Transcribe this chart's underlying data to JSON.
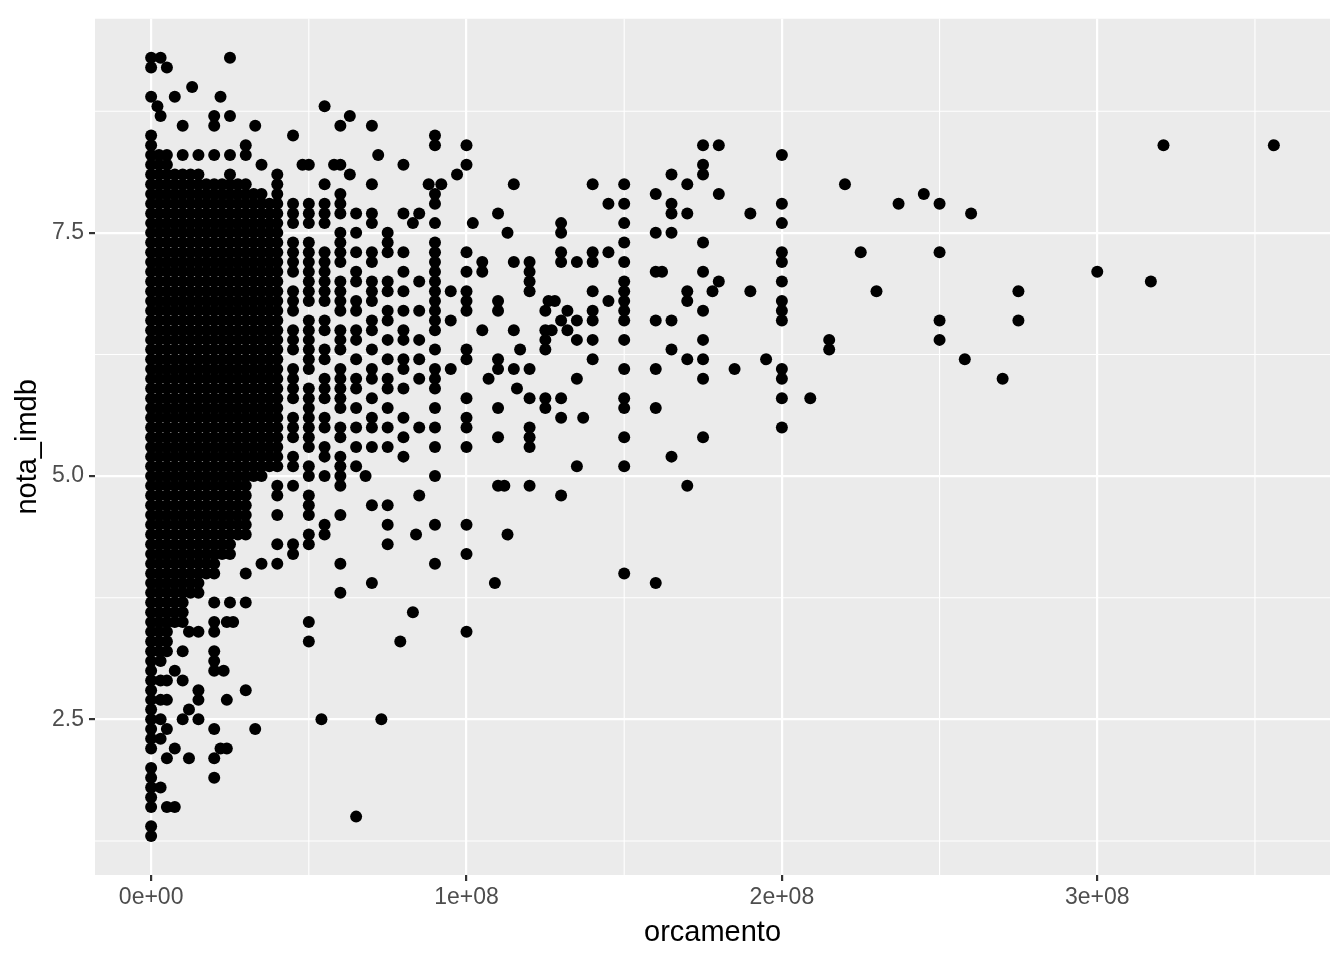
{
  "chart_data": {
    "type": "scatter",
    "xlabel": "orcamento",
    "ylabel": "nota_imdb",
    "color": "#000000",
    "marker": "circle",
    "grid": true,
    "xlim": [
      -17800000.0,
      373800000.0
    ],
    "ylim": [
      0.9,
      9.7
    ],
    "xticks": [
      {
        "value": 0,
        "label": "0e+00"
      },
      {
        "value": 100000000.0,
        "label": "1e+08"
      },
      {
        "value": 200000000.0,
        "label": "2e+08"
      },
      {
        "value": 300000000.0,
        "label": "3e+08"
      }
    ],
    "yticks": [
      2.5,
      {
        "value": 5,
        "label": "5.0"
      },
      7.5
    ],
    "x": [
      0,
      0,
      0,
      0,
      0,
      0,
      0,
      0,
      0,
      0,
      0,
      0,
      0,
      0,
      0,
      0,
      0,
      0,
      0,
      0,
      0,
      0,
      0,
      0,
      0,
      0,
      0,
      0,
      0,
      0,
      0,
      0,
      0,
      0,
      0,
      0,
      0,
      0,
      0,
      0,
      0,
      0,
      0,
      0,
      0,
      0,
      0,
      0,
      0,
      0,
      0,
      0,
      0,
      0,
      0,
      0,
      0,
      0,
      0,
      0,
      0,
      0,
      0,
      0,
      0,
      0,
      0,
      0,
      0,
      0,
      0,
      0,
      0,
      0,
      2000000.0,
      3000000.0,
      3000000.0,
      3000000.0,
      3000000.0,
      3000000.0,
      3000000.0,
      3000000.0,
      3000000.0,
      5000000.0,
      5000000.0,
      5000000.0,
      5000000.0,
      5000000.0,
      5000000.0,
      5000000.0,
      5000000.0,
      5000000.0,
      5000000.0,
      5000000.0,
      5000000.0,
      5000000.0,
      5000000.0,
      5000000.0,
      5000000.0,
      5000000.0,
      5000000.0,
      5000000.0,
      5000000.0,
      5000000.0,
      5000000.0,
      5000000.0,
      5000000.0,
      5000000.0,
      5000000.0,
      5000000.0,
      5000000.0,
      5000000.0,
      5000000.0,
      5000000.0,
      5000000.0,
      5000000.0,
      5000000.0,
      5000000.0,
      5000000.0,
      5000000.0,
      5000000.0,
      5000000.0,
      5000000.0,
      5000000.0,
      5000000.0,
      5000000.0,
      5000000.0,
      5000000.0,
      5000000.0,
      5000000.0,
      5000000.0,
      5000000.0,
      5000000.0,
      5000000.0,
      5000000.0,
      5000000.0,
      5000000.0,
      5000000.0,
      5000000.0,
      5000000.0,
      5000000.0,
      7500000.0,
      7500000.0,
      7500000.0,
      7500000.0,
      10000000.0,
      10000000.0,
      10000000.0,
      10000000.0,
      10000000.0,
      10000000.0,
      10000000.0,
      10000000.0,
      10000000.0,
      10000000.0,
      10000000.0,
      10000000.0,
      10000000.0,
      10000000.0,
      10000000.0,
      10000000.0,
      10000000.0,
      10000000.0,
      10000000.0,
      10000000.0,
      10000000.0,
      10000000.0,
      10000000.0,
      10000000.0,
      10000000.0,
      10000000.0,
      10000000.0,
      10000000.0,
      10000000.0,
      10000000.0,
      10000000.0,
      10000000.0,
      10000000.0,
      10000000.0,
      10000000.0,
      10000000.0,
      10000000.0,
      10000000.0,
      10000000.0,
      10000000.0,
      10000000.0,
      10000000.0,
      10000000.0,
      10000000.0,
      10000000.0,
      10000000.0,
      10000000.0,
      10000000.0,
      10000000.0,
      10000000.0,
      10000000.0,
      10000000.0,
      12000000.0,
      12000000.0,
      12000000.0,
      13000000.0,
      15000000.0,
      15000000.0,
      15000000.0,
      15000000.0,
      15000000.0,
      15000000.0,
      15000000.0,
      15000000.0,
      15000000.0,
      15000000.0,
      15000000.0,
      15000000.0,
      15000000.0,
      15000000.0,
      15000000.0,
      15000000.0,
      15000000.0,
      15000000.0,
      15000000.0,
      15000000.0,
      15000000.0,
      15000000.0,
      15000000.0,
      15000000.0,
      15000000.0,
      15000000.0,
      15000000.0,
      15000000.0,
      15000000.0,
      15000000.0,
      15000000.0,
      15000000.0,
      15000000.0,
      15000000.0,
      15000000.0,
      15000000.0,
      15000000.0,
      15000000.0,
      15000000.0,
      15000000.0,
      15000000.0,
      15000000.0,
      15000000.0,
      15000000.0,
      15000000.0,
      15000000.0,
      15000000.0,
      15000000.0,
      15000000.0,
      20000000.0,
      20000000.0,
      20000000.0,
      20000000.0,
      20000000.0,
      20000000.0,
      20000000.0,
      20000000.0,
      20000000.0,
      20000000.0,
      20000000.0,
      20000000.0,
      20000000.0,
      20000000.0,
      20000000.0,
      20000000.0,
      20000000.0,
      20000000.0,
      20000000.0,
      20000000.0,
      20000000.0,
      20000000.0,
      20000000.0,
      20000000.0,
      20000000.0,
      20000000.0,
      20000000.0,
      20000000.0,
      20000000.0,
      20000000.0,
      20000000.0,
      20000000.0,
      20000000.0,
      20000000.0,
      20000000.0,
      20000000.0,
      20000000.0,
      20000000.0,
      20000000.0,
      20000000.0,
      20000000.0,
      20000000.0,
      20000000.0,
      20000000.0,
      20000000.0,
      20000000.0,
      20000000.0,
      20000000.0,
      20000000.0,
      20000000.0,
      20000000.0,
      20000000.0,
      20000000.0,
      22000000.0,
      22000000.0,
      23000000.0,
      24000000.0,
      24000000.0,
      24000000.0,
      25000000.0,
      25000000.0,
      25000000.0,
      25000000.0,
      25000000.0,
      25000000.0,
      25000000.0,
      25000000.0,
      25000000.0,
      25000000.0,
      25000000.0,
      25000000.0,
      25000000.0,
      25000000.0,
      25000000.0,
      25000000.0,
      25000000.0,
      25000000.0,
      25000000.0,
      25000000.0,
      25000000.0,
      25000000.0,
      25000000.0,
      25000000.0,
      25000000.0,
      25000000.0,
      25000000.0,
      25000000.0,
      25000000.0,
      25000000.0,
      25000000.0,
      25000000.0,
      25000000.0,
      25000000.0,
      25000000.0,
      25000000.0,
      25000000.0,
      25000000.0,
      25000000.0,
      25000000.0,
      25000000.0,
      25000000.0,
      25000000.0,
      25000000.0,
      26000000.0,
      30000000.0,
      30000000.0,
      30000000.0,
      30000000.0,
      30000000.0,
      30000000.0,
      30000000.0,
      30000000.0,
      30000000.0,
      30000000.0,
      30000000.0,
      30000000.0,
      30000000.0,
      30000000.0,
      30000000.0,
      30000000.0,
      30000000.0,
      30000000.0,
      30000000.0,
      30000000.0,
      30000000.0,
      30000000.0,
      30000000.0,
      30000000.0,
      30000000.0,
      30000000.0,
      30000000.0,
      30000000.0,
      30000000.0,
      30000000.0,
      30000000.0,
      30000000.0,
      30000000.0,
      30000000.0,
      30000000.0,
      30000000.0,
      30000000.0,
      30000000.0,
      30000000.0,
      30000000.0,
      30000000.0,
      30000000.0,
      33000000.0,
      33000000.0,
      35000000.0,
      35000000.0,
      35000000.0,
      35000000.0,
      35000000.0,
      35000000.0,
      35000000.0,
      35000000.0,
      35000000.0,
      35000000.0,
      35000000.0,
      35000000.0,
      35000000.0,
      35000000.0,
      35000000.0,
      35000000.0,
      35000000.0,
      35000000.0,
      35000000.0,
      35000000.0,
      35000000.0,
      35000000.0,
      35000000.0,
      35000000.0,
      35000000.0,
      35000000.0,
      35000000.0,
      35000000.0,
      35000000.0,
      35000000.0,
      35000000.0,
      35000000.0,
      40000000.0,
      40000000.0,
      40000000.0,
      40000000.0,
      40000000.0,
      40000000.0,
      40000000.0,
      40000000.0,
      40000000.0,
      40000000.0,
      40000000.0,
      40000000.0,
      40000000.0,
      40000000.0,
      40000000.0,
      40000000.0,
      40000000.0,
      40000000.0,
      40000000.0,
      40000000.0,
      40000000.0,
      40000000.0,
      40000000.0,
      40000000.0,
      40000000.0,
      40000000.0,
      40000000.0,
      40000000.0,
      40000000.0,
      40000000.0,
      40000000.0,
      40000000.0,
      40000000.0,
      40000000.0,
      40000000.0,
      40000000.0,
      45000000.0,
      45000000.0,
      45000000.0,
      45000000.0,
      45000000.0,
      45000000.0,
      45000000.0,
      45000000.0,
      45000000.0,
      45000000.0,
      45000000.0,
      45000000.0,
      45000000.0,
      45000000.0,
      45000000.0,
      45000000.0,
      45000000.0,
      45000000.0,
      45000000.0,
      45000000.0,
      45000000.0,
      45000000.0,
      45000000.0,
      45000000.0,
      45000000.0,
      45000000.0,
      48000000.0,
      50000000.0,
      50000000.0,
      50000000.0,
      50000000.0,
      50000000.0,
      50000000.0,
      50000000.0,
      50000000.0,
      50000000.0,
      50000000.0,
      50000000.0,
      50000000.0,
      50000000.0,
      50000000.0,
      50000000.0,
      50000000.0,
      50000000.0,
      50000000.0,
      50000000.0,
      50000000.0,
      50000000.0,
      50000000.0,
      50000000.0,
      50000000.0,
      50000000.0,
      50000000.0,
      50000000.0,
      50000000.0,
      50000000.0,
      50000000.0,
      50000000.0,
      50000000.0,
      50000000.0,
      54000000.0,
      55000000.0,
      55000000.0,
      55000000.0,
      55000000.0,
      55000000.0,
      55000000.0,
      55000000.0,
      55000000.0,
      55000000.0,
      55000000.0,
      55000000.0,
      55000000.0,
      55000000.0,
      55000000.0,
      55000000.0,
      55000000.0,
      55000000.0,
      55000000.0,
      55000000.0,
      55000000.0,
      55000000.0,
      55000000.0,
      55000000.0,
      55000000.0,
      55000000.0,
      58000000.0,
      60000000.0,
      60000000.0,
      60000000.0,
      60000000.0,
      60000000.0,
      60000000.0,
      60000000.0,
      60000000.0,
      60000000.0,
      60000000.0,
      60000000.0,
      60000000.0,
      60000000.0,
      60000000.0,
      60000000.0,
      60000000.0,
      60000000.0,
      60000000.0,
      60000000.0,
      60000000.0,
      60000000.0,
      60000000.0,
      60000000.0,
      60000000.0,
      60000000.0,
      60000000.0,
      60000000.0,
      60000000.0,
      60000000.0,
      60000000.0,
      63000000.0,
      63000000.0,
      65000000.0,
      65000000.0,
      65000000.0,
      65000000.0,
      65000000.0,
      65000000.0,
      65000000.0,
      65000000.0,
      65000000.0,
      65000000.0,
      65000000.0,
      65000000.0,
      65000000.0,
      65000000.0,
      65000000.0,
      65000000.0,
      65000000.0,
      68000000.0,
      70000000.0,
      70000000.0,
      70000000.0,
      70000000.0,
      70000000.0,
      70000000.0,
      70000000.0,
      70000000.0,
      70000000.0,
      70000000.0,
      70000000.0,
      70000000.0,
      70000000.0,
      70000000.0,
      70000000.0,
      70000000.0,
      70000000.0,
      70000000.0,
      70000000.0,
      70000000.0,
      72000000.0,
      73000000.0,
      75000000.0,
      75000000.0,
      75000000.0,
      75000000.0,
      75000000.0,
      75000000.0,
      75000000.0,
      75000000.0,
      75000000.0,
      75000000.0,
      75000000.0,
      75000000.0,
      75000000.0,
      75000000.0,
      75000000.0,
      75000000.0,
      75000000.0,
      79000000.0,
      80000000.0,
      80000000.0,
      80000000.0,
      80000000.0,
      80000000.0,
      80000000.0,
      80000000.0,
      80000000.0,
      80000000.0,
      80000000.0,
      80000000.0,
      80000000.0,
      80000000.0,
      80000000.0,
      83000000.0,
      83000000.0,
      84000000.0,
      85000000.0,
      85000000.0,
      85000000.0,
      85000000.0,
      85000000.0,
      85000000.0,
      85000000.0,
      85000000.0,
      88000000.0,
      90000000.0,
      90000000.0,
      90000000.0,
      90000000.0,
      90000000.0,
      90000000.0,
      90000000.0,
      90000000.0,
      90000000.0,
      90000000.0,
      90000000.0,
      90000000.0,
      90000000.0,
      90000000.0,
      90000000.0,
      90000000.0,
      90000000.0,
      90000000.0,
      90000000.0,
      90000000.0,
      90000000.0,
      90000000.0,
      90000000.0,
      90000000.0,
      90000000.0,
      92000000.0,
      95000000.0,
      95000000.0,
      95000000.0,
      97000000.0,
      100000000.0,
      100000000.0,
      100000000.0,
      100000000.0,
      100000000.0,
      100000000.0,
      100000000.0,
      100000000.0,
      100000000.0,
      100000000.0,
      100000000.0,
      100000000.0,
      100000000.0,
      100000000.0,
      100000000.0,
      100000000.0,
      102000000.0,
      105000000.0,
      105000000.0,
      105000000.0,
      107000000.0,
      109000000.0,
      110000000.0,
      110000000.0,
      110000000.0,
      110000000.0,
      110000000.0,
      110000000.0,
      110000000.0,
      110000000.0,
      112000000.0,
      113000000.0,
      113000000.0,
      115000000.0,
      115000000.0,
      115000000.0,
      115000000.0,
      116000000.0,
      117000000.0,
      120000000.0,
      120000000.0,
      120000000.0,
      120000000.0,
      120000000.0,
      120000000.0,
      120000000.0,
      120000000.0,
      120000000.0,
      120000000.0,
      125000000.0,
      125000000.0,
      125000000.0,
      125000000.0,
      125000000.0,
      125000000.0,
      127000000.0,
      126000000.0,
      128000000.0,
      130000000.0,
      130000000.0,
      130000000.0,
      130000000.0,
      130000000.0,
      130000000.0,
      130000000.0,
      130000000.0,
      132000000.0,
      132000000.0,
      135000000.0,
      135000000.0,
      135000000.0,
      135000000.0,
      135000000.0,
      137000000.0,
      140000000.0,
      140000000.0,
      140000000.0,
      140000000.0,
      140000000.0,
      140000000.0,
      140000000.0,
      140000000.0,
      145000000.0,
      145000000.0,
      145000000.0,
      150000000.0,
      150000000.0,
      150000000.0,
      150000000.0,
      150000000.0,
      150000000.0,
      150000000.0,
      150000000.0,
      150000000.0,
      150000000.0,
      150000000.0,
      150000000.0,
      150000000.0,
      150000000.0,
      150000000.0,
      150000000.0,
      150000000.0,
      160000000.0,
      160000000.0,
      160000000.0,
      160000000.0,
      160000000.0,
      160000000.0,
      160000000.0,
      162000000.0,
      165000000.0,
      165000000.0,
      165000000.0,
      165000000.0,
      165000000.0,
      165000000.0,
      165000000.0,
      170000000.0,
      170000000.0,
      170000000.0,
      170000000.0,
      170000000.0,
      170000000.0,
      175000000.0,
      175000000.0,
      175000000.0,
      175000000.0,
      175000000.0,
      175000000.0,
      175000000.0,
      175000000.0,
      175000000.0,
      175000000.0,
      178000000.0,
      180000000.0,
      180000000.0,
      180000000.0,
      185000000.0,
      190000000.0,
      190000000.0,
      195000000.0,
      200000000.0,
      200000000.0,
      200000000.0,
      200000000.0,
      200000000.0,
      200000000.0,
      200000000.0,
      200000000.0,
      200000000.0,
      200000000.0,
      200000000.0,
      200000000.0,
      200000000.0,
      209000000.0,
      215000000.0,
      215000000.0,
      220000000.0,
      225000000.0,
      230000000.0,
      237000000.0,
      245000000.0,
      250000000.0,
      250000000.0,
      250000000.0,
      250000000.0,
      258000000.0,
      260000000.0,
      270000000.0,
      275000000.0,
      275000000.0,
      300000000.0,
      317000000.0,
      321000000.0,
      356000000.0,
      2500000.0,
      2500000.0,
      2500000.0,
      2500000.0,
      2500000.0,
      2500000.0,
      2500000.0,
      2500000.0,
      2500000.0,
      2500000.0,
      2500000.0,
      2500000.0,
      2500000.0,
      2500000.0,
      2500000.0,
      2500000.0,
      2500000.0,
      2500000.0,
      2500000.0,
      2500000.0,
      2500000.0,
      2500000.0,
      2500000.0,
      2500000.0,
      2500000.0,
      2500000.0,
      2500000.0,
      2500000.0,
      2500000.0,
      2500000.0,
      2500000.0,
      2500000.0,
      2500000.0,
      2500000.0,
      2500000.0,
      2500000.0,
      2500000.0,
      2500000.0,
      2500000.0,
      2500000.0,
      2500000.0,
      2500000.0,
      2500000.0,
      2500000.0,
      2500000.0,
      2500000.0,
      2500000.0,
      2500000.0,
      2500000.0,
      2500000.0,
      2500000.0,
      2500000.0,
      7500000.0,
      7500000.0,
      7500000.0,
      7500000.0,
      7500000.0,
      7500000.0,
      7500000.0,
      7500000.0,
      7500000.0,
      7500000.0,
      7500000.0,
      7500000.0,
      7500000.0,
      7500000.0,
      7500000.0,
      7500000.0,
      7500000.0,
      7500000.0,
      7500000.0,
      7500000.0,
      7500000.0,
      7500000.0,
      7500000.0,
      7500000.0,
      7500000.0,
      7500000.0,
      7500000.0,
      7500000.0,
      7500000.0,
      7500000.0,
      7500000.0,
      7500000.0,
      7500000.0,
      7500000.0,
      7500000.0,
      7500000.0,
      7500000.0,
      7500000.0,
      7500000.0,
      7500000.0,
      7500000.0,
      7500000.0,
      7500000.0,
      7500000.0,
      7500000.0,
      7500000.0,
      7500000.0,
      12500000.0,
      12500000.0,
      12500000.0,
      12500000.0,
      12500000.0,
      12500000.0,
      12500000.0,
      12500000.0,
      12500000.0,
      12500000.0,
      12500000.0,
      12500000.0,
      12500000.0,
      12500000.0,
      12500000.0,
      12500000.0,
      12500000.0,
      12500000.0,
      12500000.0,
      12500000.0,
      12500000.0,
      12500000.0,
      12500000.0,
      12500000.0,
      12500000.0,
      12500000.0,
      12500000.0,
      12500000.0,
      12500000.0,
      12500000.0,
      12500000.0,
      12500000.0,
      12500000.0,
      12500000.0,
      12500000.0,
      12500000.0,
      12500000.0,
      12500000.0,
      12500000.0,
      12500000.0,
      12500000.0,
      12500000.0,
      12500000.0,
      12500000.0,
      17500000.0,
      17500000.0,
      17500000.0,
      17500000.0,
      17500000.0,
      17500000.0,
      17500000.0,
      17500000.0,
      17500000.0,
      17500000.0,
      17500000.0,
      17500000.0,
      17500000.0,
      17500000.0,
      17500000.0,
      17500000.0,
      17500000.0,
      17500000.0,
      17500000.0,
      17500000.0,
      17500000.0,
      17500000.0,
      17500000.0,
      17500000.0,
      17500000.0,
      17500000.0,
      17500000.0,
      17500000.0,
      17500000.0,
      17500000.0,
      17500000.0,
      17500000.0,
      17500000.0,
      17500000.0,
      17500000.0,
      17500000.0,
      17500000.0,
      17500000.0,
      17500000.0,
      17500000.0,
      17500000.0,
      22500000.0,
      22500000.0,
      22500000.0,
      22500000.0,
      22500000.0,
      22500000.0,
      22500000.0,
      22500000.0,
      22500000.0,
      22500000.0,
      22500000.0,
      22500000.0,
      22500000.0,
      22500000.0,
      22500000.0,
      22500000.0,
      22500000.0,
      22500000.0,
      22500000.0,
      22500000.0,
      22500000.0,
      22500000.0,
      22500000.0,
      22500000.0,
      22500000.0,
      22500000.0,
      22500000.0,
      22500000.0,
      22500000.0,
      22500000.0,
      22500000.0,
      22500000.0,
      22500000.0,
      22500000.0,
      22500000.0,
      22500000.0,
      22500000.0,
      22500000.0,
      22500000.0,
      27500000.0,
      27500000.0,
      27500000.0,
      27500000.0,
      27500000.0,
      27500000.0,
      27500000.0,
      27500000.0,
      27500000.0,
      27500000.0,
      27500000.0,
      27500000.0,
      27500000.0,
      27500000.0,
      27500000.0,
      27500000.0,
      27500000.0,
      27500000.0,
      27500000.0,
      27500000.0,
      27500000.0,
      27500000.0,
      27500000.0,
      27500000.0,
      27500000.0,
      27500000.0,
      27500000.0,
      27500000.0,
      27500000.0,
      27500000.0,
      27500000.0,
      27500000.0,
      27500000.0,
      27500000.0,
      27500000.0,
      27500000.0,
      27500000.0,
      32500000.0,
      32500000.0,
      32500000.0,
      32500000.0,
      32500000.0,
      32500000.0,
      32500000.0,
      32500000.0,
      32500000.0,
      32500000.0,
      32500000.0,
      32500000.0,
      32500000.0,
      32500000.0,
      32500000.0,
      32500000.0,
      32500000.0,
      32500000.0,
      32500000.0,
      32500000.0,
      32500000.0,
      32500000.0,
      32500000.0,
      32500000.0,
      32500000.0,
      32500000.0,
      32500000.0,
      32500000.0,
      32500000.0,
      32500000.0,
      37500000.0,
      37500000.0,
      37500000.0,
      37500000.0,
      37500000.0,
      37500000.0,
      37500000.0,
      37500000.0,
      37500000.0,
      37500000.0,
      37500000.0,
      37500000.0,
      37500000.0,
      37500000.0,
      37500000.0,
      37500000.0,
      37500000.0,
      37500000.0,
      37500000.0,
      37500000.0,
      37500000.0,
      37500000.0,
      37500000.0,
      37500000.0,
      37500000.0,
      37500000.0,
      37500000.0,
      37500000.0
    ],
    "values": [
      1.3,
      1.4,
      1.6,
      1.7,
      1.8,
      1.9,
      2.0,
      2.2,
      2.3,
      2.4,
      2.5,
      2.6,
      2.7,
      2.8,
      2.9,
      3.0,
      3.1,
      3.2,
      3.3,
      3.4,
      3.5,
      3.6,
      3.7,
      3.8,
      3.9,
      4.0,
      4.1,
      4.2,
      4.3,
      4.4,
      4.5,
      4.6,
      4.7,
      4.8,
      4.9,
      5.0,
      5.1,
      5.2,
      5.3,
      5.4,
      5.5,
      5.6,
      5.7,
      5.8,
      5.9,
      6.0,
      6.1,
      6.2,
      6.3,
      6.4,
      6.5,
      6.6,
      6.7,
      6.8,
      6.9,
      7.0,
      7.1,
      7.2,
      7.3,
      7.4,
      7.5,
      7.6,
      7.7,
      7.8,
      7.9,
      8.0,
      8.1,
      8.2,
      8.3,
      8.4,
      8.5,
      8.9,
      9.2,
      9.3,
      8.8,
      1.8,
      2.3,
      2.5,
      2.7,
      2.9,
      3.1,
      8.7,
      9.3,
      1.6,
      2.1,
      2.4,
      2.7,
      2.9,
      3.2,
      3.3,
      3.4,
      3.5,
      3.6,
      3.7,
      3.8,
      3.9,
      4.0,
      4.1,
      4.2,
      4.3,
      4.4,
      4.5,
      4.6,
      4.7,
      4.8,
      4.9,
      5.0,
      5.1,
      5.2,
      5.3,
      5.4,
      5.5,
      5.6,
      5.7,
      5.8,
      5.9,
      6.0,
      6.1,
      6.2,
      6.3,
      6.4,
      6.5,
      6.6,
      6.7,
      6.8,
      6.9,
      7.0,
      7.1,
      7.2,
      7.3,
      7.4,
      7.5,
      7.6,
      7.7,
      7.8,
      7.9,
      8.0,
      8.1,
      8.2,
      8.3,
      9.2,
      1.6,
      2.2,
      3.0,
      8.9,
      2.5,
      2.9,
      3.2,
      3.5,
      3.6,
      3.7,
      3.8,
      3.9,
      4.0,
      4.1,
      4.2,
      4.3,
      4.4,
      4.5,
      4.6,
      4.7,
      4.8,
      4.9,
      5.0,
      5.1,
      5.2,
      5.3,
      5.4,
      5.5,
      5.6,
      5.7,
      5.8,
      5.9,
      6.0,
      6.1,
      6.2,
      6.3,
      6.4,
      6.5,
      6.6,
      6.7,
      6.8,
      6.9,
      7.0,
      7.1,
      7.2,
      7.3,
      7.4,
      7.5,
      7.6,
      7.7,
      7.8,
      7.9,
      8.0,
      8.1,
      8.3,
      8.6,
      2.1,
      2.6,
      3.4,
      9.0,
      2.5,
      2.7,
      2.8,
      3.4,
      3.8,
      3.9,
      4.0,
      4.1,
      4.2,
      4.3,
      4.4,
      4.5,
      4.6,
      4.7,
      4.8,
      4.9,
      5.0,
      5.1,
      5.2,
      5.3,
      5.4,
      5.5,
      5.6,
      5.7,
      5.8,
      5.9,
      6.0,
      6.1,
      6.2,
      6.3,
      6.4,
      6.5,
      6.6,
      6.7,
      6.8,
      6.9,
      7.0,
      7.1,
      7.2,
      7.3,
      7.4,
      7.5,
      7.6,
      7.7,
      7.8,
      7.9,
      8.0,
      8.1,
      8.3,
      1.9,
      2.1,
      2.4,
      3.0,
      3.1,
      3.2,
      3.4,
      3.5,
      3.7,
      4.0,
      4.1,
      4.2,
      4.3,
      4.4,
      4.5,
      4.6,
      4.7,
      4.8,
      4.9,
      5.0,
      5.1,
      5.2,
      5.3,
      5.4,
      5.5,
      5.6,
      5.7,
      5.8,
      5.9,
      6.0,
      6.1,
      6.2,
      6.3,
      6.4,
      6.5,
      6.6,
      6.7,
      6.8,
      6.9,
      7.0,
      7.1,
      7.2,
      7.3,
      7.4,
      7.5,
      7.6,
      7.7,
      7.8,
      7.9,
      8.0,
      8.3,
      8.6,
      8.7,
      2.2,
      8.9,
      3.0,
      2.2,
      2.7,
      3.5,
      3.7,
      4.2,
      4.3,
      4.4,
      4.5,
      4.6,
      4.7,
      4.8,
      4.9,
      5.0,
      5.1,
      5.2,
      5.3,
      5.4,
      5.5,
      5.6,
      5.7,
      5.8,
      5.9,
      6.0,
      6.1,
      6.2,
      6.3,
      6.4,
      6.5,
      6.6,
      6.7,
      6.8,
      6.9,
      7.0,
      7.1,
      7.2,
      7.3,
      7.4,
      7.5,
      7.6,
      7.7,
      7.8,
      7.9,
      8.0,
      8.1,
      8.3,
      8.7,
      9.3,
      3.5,
      2.8,
      3.7,
      4.0,
      4.4,
      4.5,
      4.6,
      4.7,
      4.8,
      4.9,
      5.0,
      5.1,
      5.2,
      5.3,
      5.4,
      5.5,
      5.6,
      5.7,
      5.8,
      5.9,
      6.0,
      6.1,
      6.2,
      6.3,
      6.4,
      6.5,
      6.6,
      6.7,
      6.8,
      6.9,
      7.0,
      7.1,
      7.2,
      7.3,
      7.4,
      7.5,
      7.6,
      7.7,
      7.8,
      7.9,
      8.0,
      8.3,
      8.4,
      2.4,
      8.6,
      4.1,
      5.0,
      5.1,
      5.2,
      5.3,
      5.4,
      5.5,
      5.6,
      5.7,
      5.8,
      5.9,
      6.0,
      6.1,
      6.2,
      6.3,
      6.4,
      6.5,
      6.6,
      6.7,
      6.8,
      6.9,
      7.0,
      7.1,
      7.2,
      7.3,
      7.4,
      7.5,
      7.6,
      7.7,
      7.8,
      7.9,
      8.2,
      4.1,
      4.3,
      4.6,
      4.8,
      4.9,
      5.1,
      5.2,
      5.3,
      5.4,
      5.5,
      5.6,
      5.7,
      5.8,
      5.9,
      6.0,
      6.1,
      6.2,
      6.3,
      6.4,
      6.5,
      6.6,
      6.7,
      6.8,
      6.9,
      7.0,
      7.1,
      7.2,
      7.3,
      7.4,
      7.5,
      7.6,
      7.7,
      7.8,
      7.9,
      8.0,
      8.1,
      4.2,
      4.3,
      4.9,
      5.1,
      5.2,
      5.4,
      5.5,
      5.6,
      5.8,
      5.9,
      6.0,
      6.1,
      6.3,
      6.4,
      6.5,
      6.7,
      6.8,
      6.9,
      7.1,
      7.2,
      7.3,
      7.4,
      7.6,
      7.7,
      7.8,
      8.5,
      8.2,
      3.3,
      3.5,
      4.3,
      4.4,
      4.6,
      4.7,
      4.8,
      5.0,
      5.1,
      5.3,
      5.4,
      5.5,
      5.6,
      5.7,
      5.8,
      5.9,
      6.1,
      6.2,
      6.3,
      6.4,
      6.5,
      6.6,
      6.8,
      6.9,
      7.0,
      7.1,
      7.2,
      7.3,
      7.4,
      7.6,
      7.7,
      7.8,
      8.2,
      2.5,
      4.4,
      4.5,
      5.0,
      5.2,
      5.3,
      5.5,
      5.6,
      5.8,
      5.9,
      6.0,
      6.2,
      6.3,
      6.5,
      6.6,
      6.8,
      6.9,
      7.0,
      7.1,
      7.2,
      7.3,
      7.6,
      7.7,
      7.8,
      8.0,
      8.8,
      8.2,
      3.8,
      4.1,
      4.6,
      4.9,
      5.0,
      5.1,
      5.2,
      5.4,
      5.5,
      5.7,
      5.8,
      5.9,
      6.0,
      6.1,
      6.3,
      6.4,
      6.5,
      6.7,
      6.8,
      6.9,
      7.0,
      7.2,
      7.3,
      7.4,
      7.5,
      7.7,
      7.8,
      7.9,
      8.2,
      8.6,
      8.1,
      8.7,
      1.5,
      5.1,
      5.3,
      5.5,
      5.7,
      5.9,
      6.0,
      6.2,
      6.4,
      6.5,
      6.7,
      6.8,
      7.0,
      7.1,
      7.3,
      7.5,
      7.7,
      5.0,
      3.9,
      4.7,
      5.3,
      5.5,
      5.6,
      5.8,
      6.0,
      6.1,
      6.3,
      6.5,
      6.6,
      6.8,
      6.9,
      7.0,
      7.2,
      7.3,
      7.6,
      7.7,
      8.0,
      8.6,
      8.3,
      2.5,
      4.3,
      4.5,
      4.7,
      5.3,
      5.5,
      5.7,
      5.9,
      6.0,
      6.2,
      6.4,
      6.6,
      6.7,
      6.9,
      7.0,
      7.3,
      7.4,
      7.5,
      3.3,
      5.2,
      5.4,
      5.6,
      5.9,
      6.1,
      6.2,
      6.4,
      6.5,
      6.7,
      6.9,
      7.1,
      7.3,
      7.7,
      8.2,
      3.6,
      7.6,
      4.4,
      4.8,
      5.5,
      6.0,
      6.2,
      6.4,
      6.7,
      7.0,
      7.7,
      8.0,
      4.1,
      4.5,
      5.0,
      5.3,
      5.5,
      5.7,
      5.9,
      6.0,
      6.1,
      6.3,
      6.5,
      6.6,
      6.7,
      6.8,
      6.9,
      7.0,
      7.1,
      7.2,
      7.3,
      7.4,
      7.6,
      7.8,
      7.9,
      8.4,
      8.5,
      8.0,
      6.1,
      6.6,
      6.9,
      8.1,
      3.4,
      4.2,
      4.5,
      5.3,
      5.5,
      5.6,
      5.8,
      6.2,
      6.3,
      6.7,
      6.8,
      6.9,
      7.1,
      7.3,
      8.2,
      8.4,
      7.6,
      6.5,
      7.1,
      7.2,
      6.0,
      3.9,
      4.9,
      5.4,
      5.7,
      6.1,
      6.2,
      6.7,
      6.8,
      7.7,
      4.9,
      4.4,
      7.5,
      6.1,
      6.5,
      7.2,
      8.0,
      5.9,
      6.3,
      4.9,
      5.3,
      5.4,
      5.5,
      5.8,
      6.1,
      6.9,
      7.0,
      7.1,
      7.2,
      5.7,
      5.8,
      6.3,
      6.4,
      6.5,
      6.7,
      6.5,
      6.8,
      6.8,
      4.8,
      5.6,
      5.8,
      6.6,
      7.2,
      7.3,
      7.5,
      7.6,
      6.5,
      6.7,
      5.1,
      6.0,
      6.4,
      6.6,
      7.2,
      5.6,
      6.2,
      6.4,
      6.6,
      6.7,
      6.9,
      7.2,
      7.3,
      8.0,
      6.8,
      7.3,
      7.8,
      4.0,
      5.1,
      5.4,
      5.7,
      5.8,
      6.1,
      6.4,
      6.6,
      6.7,
      6.8,
      6.9,
      7.0,
      7.2,
      7.4,
      7.6,
      7.8,
      8.0,
      3.9,
      5.7,
      6.1,
      6.6,
      7.1,
      7.5,
      7.9,
      7.1,
      5.2,
      6.3,
      6.6,
      7.5,
      7.7,
      7.8,
      8.1,
      4.9,
      6.2,
      6.8,
      6.9,
      7.7,
      8.0,
      5.4,
      6.0,
      6.2,
      6.4,
      6.7,
      7.1,
      7.4,
      8.1,
      8.2,
      8.4,
      6.9,
      7.0,
      7.9,
      8.4,
      6.1,
      6.9,
      7.7,
      6.2,
      5.5,
      5.8,
      6.0,
      6.1,
      6.6,
      6.7,
      6.8,
      7.0,
      7.2,
      7.3,
      7.6,
      7.8,
      8.3,
      5.8,
      6.3,
      6.4,
      8.0,
      7.3,
      6.9,
      7.8,
      7.9,
      6.4,
      6.6,
      7.3,
      7.8,
      6.2,
      7.7,
      6.0,
      6.6,
      6.9,
      7.1,
      7.0,
      8.4,
      8.4,
      3.2,
      3.3,
      3.4,
      3.5,
      3.6,
      3.7,
      3.8,
      3.9,
      4.0,
      4.1,
      4.2,
      4.3,
      4.4,
      4.5,
      4.6,
      4.7,
      4.8,
      4.9,
      5.0,
      5.1,
      5.2,
      5.3,
      5.4,
      5.5,
      5.6,
      5.7,
      5.8,
      5.9,
      6.0,
      6.1,
      6.2,
      6.3,
      6.4,
      6.5,
      6.6,
      6.7,
      6.8,
      6.9,
      7.0,
      7.1,
      7.2,
      7.3,
      7.4,
      7.5,
      7.6,
      7.7,
      7.8,
      7.9,
      8.0,
      8.1,
      8.2,
      8.3,
      3.5,
      3.6,
      3.7,
      3.8,
      3.9,
      4.0,
      4.1,
      4.2,
      4.3,
      4.4,
      4.5,
      4.6,
      4.7,
      4.8,
      4.9,
      5.0,
      5.1,
      5.2,
      5.3,
      5.4,
      5.5,
      5.6,
      5.7,
      5.8,
      5.9,
      6.0,
      6.1,
      6.2,
      6.3,
      6.4,
      6.5,
      6.6,
      6.7,
      6.8,
      6.9,
      7.0,
      7.1,
      7.2,
      7.3,
      7.4,
      7.5,
      7.6,
      7.7,
      7.8,
      7.9,
      8.0,
      8.1,
      3.8,
      3.9,
      4.0,
      4.1,
      4.2,
      4.3,
      4.4,
      4.5,
      4.6,
      4.7,
      4.8,
      4.9,
      5.0,
      5.1,
      5.2,
      5.3,
      5.4,
      5.5,
      5.6,
      5.7,
      5.8,
      5.9,
      6.0,
      6.1,
      6.2,
      6.3,
      6.4,
      6.5,
      6.6,
      6.7,
      6.8,
      6.9,
      7.0,
      7.1,
      7.2,
      7.3,
      7.4,
      7.5,
      7.6,
      7.7,
      7.8,
      7.9,
      8.0,
      8.1,
      4.0,
      4.1,
      4.2,
      4.3,
      4.4,
      4.5,
      4.6,
      4.7,
      4.8,
      4.9,
      5.0,
      5.1,
      5.2,
      5.3,
      5.4,
      5.5,
      5.6,
      5.7,
      5.8,
      5.9,
      6.0,
      6.1,
      6.2,
      6.3,
      6.4,
      6.5,
      6.6,
      6.7,
      6.8,
      6.9,
      7.0,
      7.1,
      7.2,
      7.3,
      7.4,
      7.5,
      7.6,
      7.7,
      7.8,
      7.9,
      8.0,
      4.2,
      4.3,
      4.4,
      4.5,
      4.6,
      4.7,
      4.8,
      4.9,
      5.0,
      5.1,
      5.2,
      5.3,
      5.4,
      5.5,
      5.6,
      5.7,
      5.8,
      5.9,
      6.0,
      6.1,
      6.2,
      6.3,
      6.4,
      6.5,
      6.6,
      6.7,
      6.8,
      6.9,
      7.0,
      7.1,
      7.2,
      7.3,
      7.4,
      7.5,
      7.6,
      7.7,
      7.8,
      7.9,
      8.0,
      4.4,
      4.5,
      4.6,
      4.7,
      4.8,
      4.9,
      5.0,
      5.1,
      5.2,
      5.3,
      5.4,
      5.5,
      5.6,
      5.7,
      5.8,
      5.9,
      6.0,
      6.1,
      6.2,
      6.3,
      6.4,
      6.5,
      6.6,
      6.7,
      6.8,
      6.9,
      7.0,
      7.1,
      7.2,
      7.3,
      7.4,
      7.5,
      7.6,
      7.7,
      7.8,
      7.9,
      8.0,
      5.0,
      5.1,
      5.2,
      5.3,
      5.4,
      5.5,
      5.6,
      5.7,
      5.8,
      5.9,
      6.0,
      6.1,
      6.2,
      6.3,
      6.4,
      6.5,
      6.6,
      6.7,
      6.8,
      6.9,
      7.0,
      7.1,
      7.2,
      7.3,
      7.4,
      7.5,
      7.6,
      7.7,
      7.8,
      7.9,
      5.1,
      5.2,
      5.3,
      5.4,
      5.5,
      5.6,
      5.7,
      5.8,
      5.9,
      6.0,
      6.1,
      6.2,
      6.3,
      6.4,
      6.5,
      6.6,
      6.7,
      6.8,
      6.9,
      7.0,
      7.1,
      7.2,
      7.3,
      7.4,
      7.5,
      7.6,
      7.7,
      7.8
    ]
  }
}
